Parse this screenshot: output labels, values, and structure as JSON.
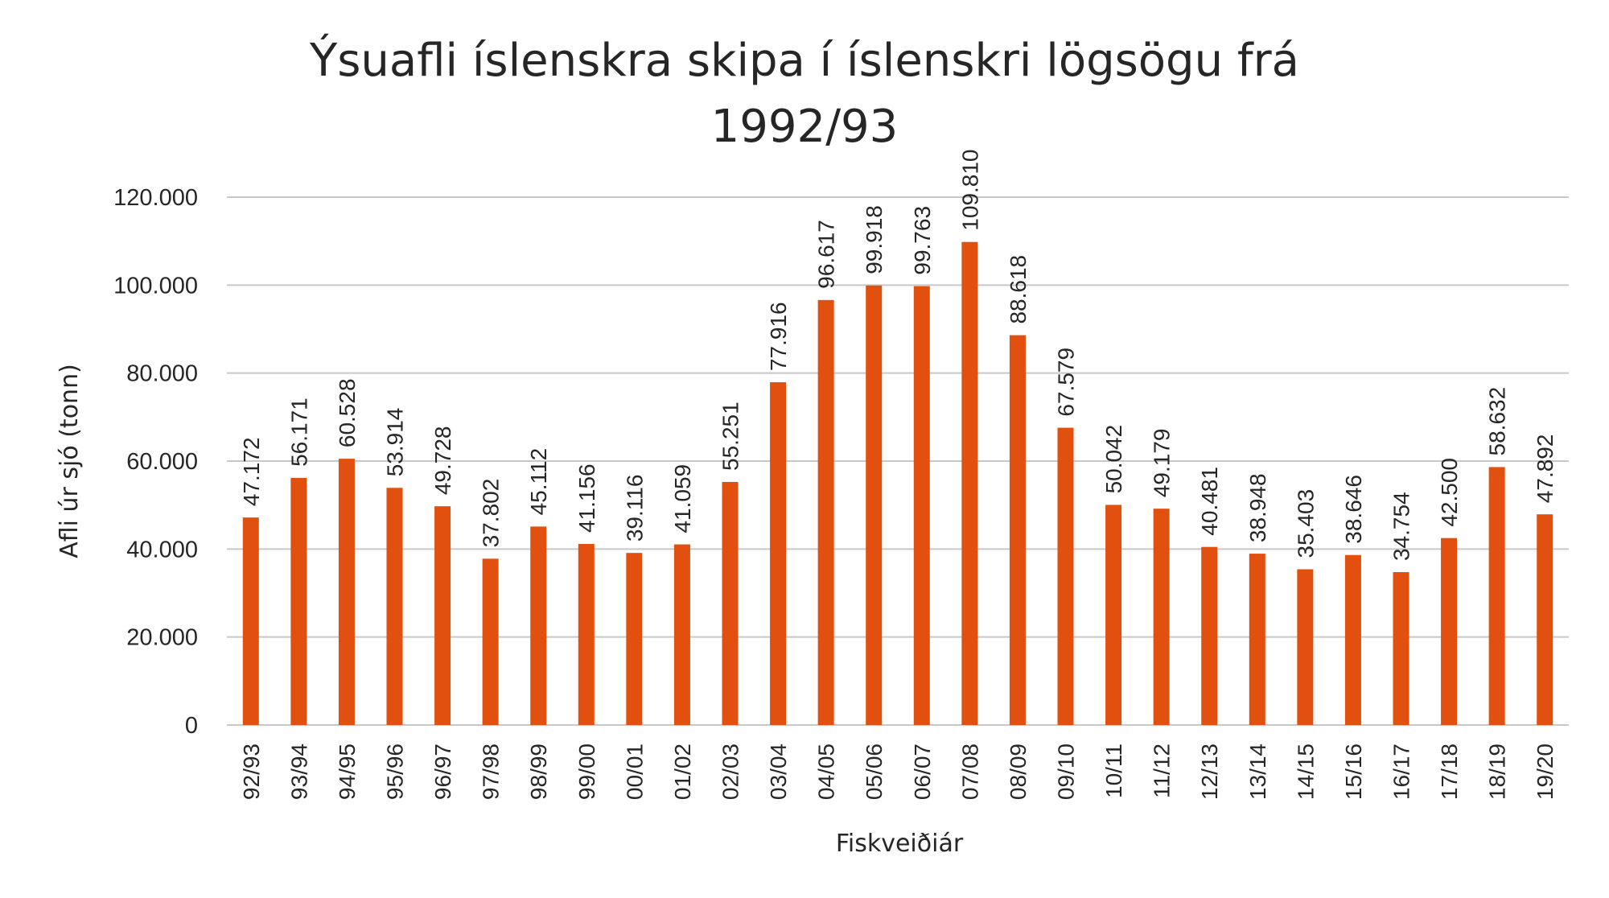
{
  "chart_data": {
    "type": "bar",
    "title_line1": "Ýsuafli íslenskra skipa í íslenskri lögsögu frá",
    "title_line2": "1992/93",
    "xlabel": "Fiskveiðiár",
    "ylabel": "Afli úr sjó (tonn)",
    "ylim": [
      0,
      120000
    ],
    "yticks": [
      0,
      20000,
      40000,
      60000,
      80000,
      100000,
      120000
    ],
    "ytick_labels": [
      "0",
      "20.000",
      "40.000",
      "60.000",
      "80.000",
      "100.000",
      "120.000"
    ],
    "grid": true,
    "bar_color": "#E2500F",
    "categories": [
      "92/93",
      "93/94",
      "94/95",
      "95/96",
      "96/97",
      "97/98",
      "98/99",
      "99/00",
      "00/01",
      "01/02",
      "02/03",
      "03/04",
      "04/05",
      "05/06",
      "06/07",
      "07/08",
      "08/09",
      "09/10",
      "10/11",
      "11/12",
      "12/13",
      "13/14",
      "14/15",
      "15/16",
      "16/17",
      "17/18",
      "18/19",
      "19/20"
    ],
    "values": [
      47172,
      56171,
      60528,
      53914,
      49728,
      37802,
      45112,
      41156,
      39116,
      41059,
      55251,
      77916,
      96617,
      99918,
      99763,
      109810,
      88618,
      67579,
      50042,
      49179,
      40481,
      38948,
      35403,
      38646,
      34754,
      42500,
      58632,
      47892
    ],
    "value_labels": [
      "47.172",
      "56.171",
      "60.528",
      "53.914",
      "49.728",
      "37.802",
      "45.112",
      "41.156",
      "39.116",
      "41.059",
      "55.251",
      "77.916",
      "96.617",
      "99.918",
      "99.763",
      "109.810",
      "88.618",
      "67.579",
      "50.042",
      "49.179",
      "40.481",
      "38.948",
      "35.403",
      "38.646",
      "34.754",
      "42.500",
      "58.632",
      "47.892"
    ]
  }
}
